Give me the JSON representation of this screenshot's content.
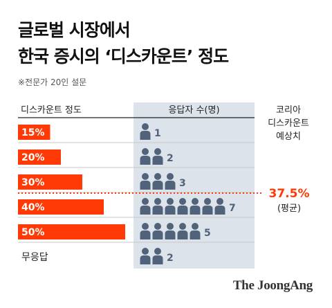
{
  "title": "글로벌 시장에서",
  "title_line2": "한국 증시의 ‘디스카운트’ 정도",
  "subtitle": "※전문가 20인 설문",
  "source": "The JoongAng",
  "colors": {
    "bar": "#ff3a06",
    "person": "#51637a",
    "panel": "#dde3ea",
    "average_line": "#ff3a06",
    "average_text": "#ff3a06"
  },
  "chart_data": {
    "type": "bar",
    "header_left": "디스카운트 정도",
    "header_mid": "응답자 수(명)",
    "header_right": [
      "코리아",
      "디스카운트",
      "예상치"
    ],
    "categories": [
      "15%",
      "20%",
      "30%",
      "40%",
      "50%",
      "무응답"
    ],
    "bar_values": [
      15,
      20,
      30,
      40,
      50,
      null
    ],
    "respondents": [
      1,
      2,
      3,
      7,
      5,
      2
    ],
    "average": {
      "value": 37.5,
      "label": "37.5%",
      "sublabel": "(평균)"
    }
  }
}
